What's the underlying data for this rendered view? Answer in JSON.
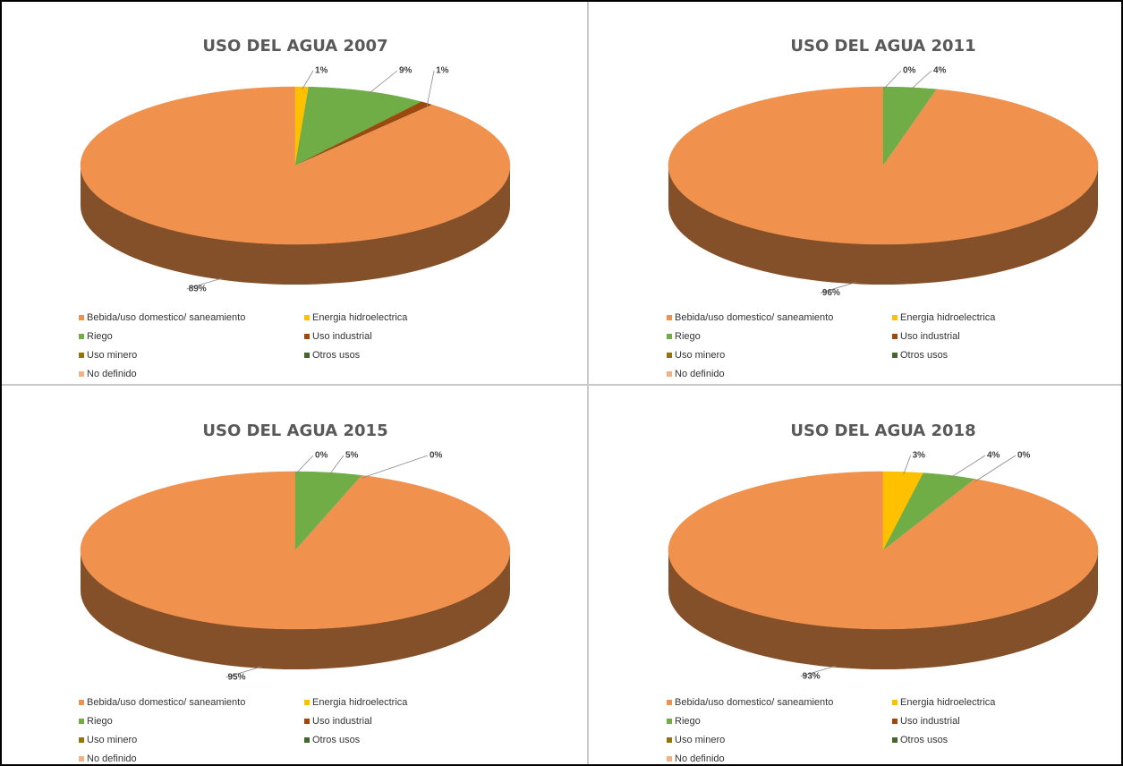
{
  "chart_data": [
    {
      "type": "pie",
      "title": "USO DEL AGUA 2007",
      "categories": [
        "Bebida/uso domestico/ saneamiento",
        "Energia hidroelectrica",
        "Riego",
        "Uso industrial",
        "Uso minero",
        "Otros usos",
        "No definido"
      ],
      "values": [
        89,
        1,
        9,
        1,
        0,
        0,
        0
      ],
      "value_labels": [
        "89%",
        "1%",
        "9%",
        "1%",
        null,
        null,
        null
      ],
      "colors": [
        "#f0914d",
        "#ffc000",
        "#70ad47",
        "#9e480e",
        "#997300",
        "#43682b",
        "#f4b183"
      ]
    },
    {
      "type": "pie",
      "title": "USO DEL AGUA 2011",
      "categories": [
        "Bebida/uso domestico/ saneamiento",
        "Energia hidroelectrica",
        "Riego",
        "Uso industrial",
        "Uso minero",
        "Otros usos",
        "No definido"
      ],
      "values": [
        96,
        0,
        4,
        0,
        0,
        0,
        0
      ],
      "value_labels": [
        "96%",
        "0%",
        "4%",
        null,
        null,
        null,
        null
      ],
      "colors": [
        "#f0914d",
        "#ffc000",
        "#70ad47",
        "#9e480e",
        "#997300",
        "#43682b",
        "#f4b183"
      ]
    },
    {
      "type": "pie",
      "title": "USO DEL AGUA 2015",
      "categories": [
        "Bebida/uso domestico/ saneamiento",
        "Energia hidroelectrica",
        "Riego",
        "Uso industrial",
        "Uso minero",
        "Otros usos",
        "No definido"
      ],
      "values": [
        95,
        0,
        5,
        0,
        0,
        0,
        0
      ],
      "value_labels": [
        "95%",
        "0%",
        "5%",
        null,
        null,
        null,
        "0%"
      ],
      "colors": [
        "#f0914d",
        "#ffc000",
        "#70ad47",
        "#9e480e",
        "#997300",
        "#43682b",
        "#f4b183"
      ]
    },
    {
      "type": "pie",
      "title": "USO DEL AGUA 2018",
      "categories": [
        "Bebida/uso domestico/ saneamiento",
        "Energia hidroelectrica",
        "Riego",
        "Uso industrial",
        "Uso minero",
        "Otros usos",
        "No definido"
      ],
      "values": [
        93,
        3,
        4,
        0,
        0,
        0,
        0
      ],
      "value_labels": [
        "93%",
        "3%",
        "4%",
        null,
        null,
        null,
        "0%"
      ],
      "colors": [
        "#f0914d",
        "#ffc000",
        "#70ad47",
        "#9e480e",
        "#997300",
        "#43682b",
        "#f4b183"
      ]
    }
  ]
}
